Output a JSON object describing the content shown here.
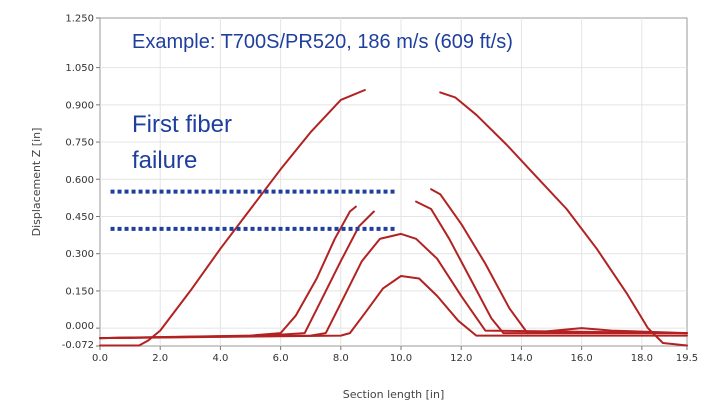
{
  "chart_data": {
    "type": "line",
    "xlabel": "Section length [in]",
    "ylabel": "Displacement Z [in]",
    "xlim": [
      0.0,
      19.5
    ],
    "ylim": [
      -0.072,
      1.25
    ],
    "x_ticks": [
      {
        "v": 0.0,
        "label": "0.0"
      },
      {
        "v": 2.0,
        "label": "2.0"
      },
      {
        "v": 4.0,
        "label": "4.0"
      },
      {
        "v": 6.0,
        "label": "6.0"
      },
      {
        "v": 8.0,
        "label": "8.0"
      },
      {
        "v": 10.0,
        "label": "10.0"
      },
      {
        "v": 12.0,
        "label": "12.0"
      },
      {
        "v": 14.0,
        "label": "14.0"
      },
      {
        "v": 16.0,
        "label": "16.0"
      },
      {
        "v": 18.0,
        "label": "18.0"
      },
      {
        "v": 19.5,
        "label": "19.5"
      }
    ],
    "y_ticks": [
      {
        "v": -0.072,
        "label": "-0.072"
      },
      {
        "v": 0.0,
        "label": "0.000"
      },
      {
        "v": 0.15,
        "label": "0.150"
      },
      {
        "v": 0.3,
        "label": "0.300"
      },
      {
        "v": 0.45,
        "label": "0.450"
      },
      {
        "v": 0.6,
        "label": "0.600"
      },
      {
        "v": 0.75,
        "label": "0.750"
      },
      {
        "v": 0.9,
        "label": "0.900"
      },
      {
        "v": 1.05,
        "label": "1.050"
      },
      {
        "v": 1.25,
        "label": "1.250"
      }
    ],
    "grid": true,
    "annotations": [
      {
        "text": "Example: T700S/PR520, 186 m/s (609 ft/s)"
      },
      {
        "text": "First fiber failure",
        "lines": [
          "First fiber",
          "failure"
        ]
      }
    ],
    "reference_lines": [
      {
        "y": 0.55,
        "x_start": 0.35,
        "x_end": 9.8,
        "style": "dotted",
        "color": "#1f3f9f"
      },
      {
        "y": 0.4,
        "x_start": 0.35,
        "x_end": 9.8,
        "style": "dotted",
        "color": "#1f3f9f"
      }
    ],
    "line_color": "#b22222",
    "series": [
      {
        "points": [
          [
            0.0,
            -0.04
          ],
          [
            5.0,
            -0.03
          ],
          [
            6.0,
            -0.02
          ],
          [
            6.5,
            0.05
          ],
          [
            7.2,
            0.2
          ],
          [
            7.8,
            0.36
          ],
          [
            8.3,
            0.47
          ],
          [
            8.5,
            0.49
          ]
        ]
      },
      {
        "points": [
          [
            0.0,
            -0.04
          ],
          [
            5.5,
            -0.03
          ],
          [
            6.8,
            -0.02
          ],
          [
            7.3,
            0.1
          ],
          [
            8.0,
            0.27
          ],
          [
            8.6,
            0.41
          ],
          [
            9.1,
            0.47
          ]
        ]
      },
      {
        "points": [
          [
            0.0,
            -0.04
          ],
          [
            7.0,
            -0.03
          ],
          [
            7.5,
            -0.02
          ],
          [
            8.0,
            0.1
          ],
          [
            8.7,
            0.27
          ],
          [
            9.3,
            0.36
          ],
          [
            10.0,
            0.38
          ],
          [
            10.5,
            0.36
          ],
          [
            11.2,
            0.28
          ],
          [
            12.0,
            0.13
          ],
          [
            12.8,
            -0.01
          ],
          [
            19.5,
            -0.02
          ]
        ]
      },
      {
        "points": [
          [
            0.0,
            -0.04
          ],
          [
            8.0,
            -0.03
          ],
          [
            8.3,
            -0.02
          ],
          [
            8.8,
            0.06
          ],
          [
            9.4,
            0.16
          ],
          [
            10.0,
            0.21
          ],
          [
            10.6,
            0.2
          ],
          [
            11.2,
            0.13
          ],
          [
            11.9,
            0.03
          ],
          [
            12.5,
            -0.03
          ],
          [
            19.5,
            -0.03
          ]
        ]
      },
      {
        "points": [
          [
            10.5,
            0.51
          ],
          [
            11.0,
            0.48
          ],
          [
            11.6,
            0.36
          ],
          [
            12.3,
            0.2
          ],
          [
            13.0,
            0.04
          ],
          [
            13.4,
            -0.02
          ],
          [
            19.5,
            -0.02
          ]
        ]
      },
      {
        "points": [
          [
            11.0,
            0.56
          ],
          [
            11.3,
            0.54
          ],
          [
            12.0,
            0.42
          ],
          [
            12.8,
            0.26
          ],
          [
            13.6,
            0.08
          ],
          [
            14.2,
            -0.02
          ],
          [
            16.0,
            0.0
          ],
          [
            17.0,
            -0.01
          ],
          [
            19.5,
            -0.02
          ]
        ]
      },
      {
        "points": [
          [
            0.0,
            -0.07
          ],
          [
            1.3,
            -0.07
          ],
          [
            1.6,
            -0.05
          ],
          [
            2.0,
            -0.01
          ],
          [
            3.0,
            0.15
          ],
          [
            4.0,
            0.32
          ],
          [
            5.0,
            0.48
          ],
          [
            6.0,
            0.64
          ],
          [
            7.0,
            0.79
          ],
          [
            8.0,
            0.92
          ],
          [
            8.4,
            0.94
          ],
          [
            8.8,
            0.96
          ]
        ]
      },
      {
        "points": [
          [
            11.3,
            0.95
          ],
          [
            11.8,
            0.93
          ],
          [
            12.5,
            0.86
          ],
          [
            13.5,
            0.74
          ],
          [
            14.5,
            0.61
          ],
          [
            15.5,
            0.48
          ],
          [
            16.5,
            0.32
          ],
          [
            17.5,
            0.14
          ],
          [
            18.2,
            0.0
          ],
          [
            18.7,
            -0.06
          ],
          [
            19.5,
            -0.07
          ]
        ]
      }
    ]
  }
}
